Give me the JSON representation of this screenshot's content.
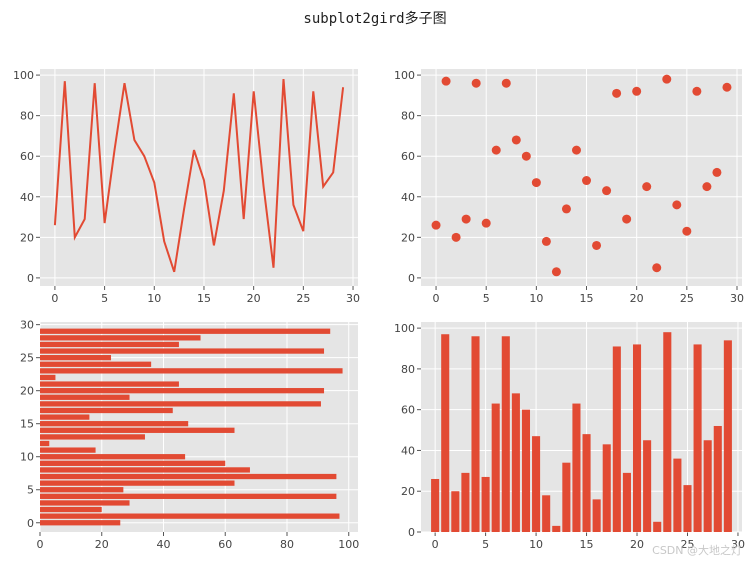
{
  "figure": {
    "title": "subplot2gird多子图",
    "watermark": "CSDN @大地之灯",
    "style": "ggplot",
    "axes_background": "#e5e5e5",
    "grid_color": "#ffffff",
    "series_color": "#e24a33"
  },
  "chart_data": [
    {
      "type": "line",
      "position": "top-left",
      "x": [
        0,
        1,
        2,
        3,
        4,
        5,
        6,
        7,
        8,
        9,
        10,
        11,
        12,
        13,
        14,
        15,
        16,
        17,
        18,
        19,
        20,
        21,
        22,
        23,
        24,
        25,
        26,
        27,
        28,
        29
      ],
      "values": [
        26,
        97,
        20,
        29,
        96,
        27,
        63,
        96,
        68,
        60,
        47,
        18,
        3,
        34,
        63,
        48,
        16,
        43,
        91,
        29,
        92,
        45,
        5,
        98,
        36,
        23,
        92,
        45,
        52,
        94
      ],
      "xlim": [
        -1.5,
        30.5
      ],
      "ylim": [
        -4,
        103
      ],
      "xticks": [
        "0",
        "5",
        "10",
        "15",
        "20",
        "25",
        "30"
      ],
      "yticks": [
        "0",
        "20",
        "40",
        "60",
        "80",
        "100"
      ],
      "grid": true
    },
    {
      "type": "scatter",
      "position": "top-right",
      "x": [
        0,
        1,
        2,
        3,
        4,
        5,
        6,
        7,
        8,
        9,
        10,
        11,
        12,
        13,
        14,
        15,
        16,
        17,
        18,
        19,
        20,
        21,
        22,
        23,
        24,
        25,
        26,
        27,
        28,
        29
      ],
      "values": [
        26,
        97,
        20,
        29,
        96,
        27,
        63,
        96,
        68,
        60,
        47,
        18,
        3,
        34,
        63,
        48,
        16,
        43,
        91,
        29,
        92,
        45,
        5,
        98,
        36,
        23,
        92,
        45,
        52,
        94
      ],
      "xlim": [
        -1.5,
        30.5
      ],
      "ylim": [
        -4,
        103
      ],
      "xticks": [
        "0",
        "5",
        "10",
        "15",
        "20",
        "25",
        "30"
      ],
      "yticks": [
        "0",
        "20",
        "40",
        "60",
        "80",
        "100"
      ],
      "grid": true
    },
    {
      "type": "bar",
      "orientation": "horizontal",
      "position": "bottom-left",
      "categories": [
        0,
        1,
        2,
        3,
        4,
        5,
        6,
        7,
        8,
        9,
        10,
        11,
        12,
        13,
        14,
        15,
        16,
        17,
        18,
        19,
        20,
        21,
        22,
        23,
        24,
        25,
        26,
        27,
        28,
        29
      ],
      "values": [
        26,
        97,
        20,
        29,
        96,
        27,
        63,
        96,
        68,
        60,
        47,
        18,
        3,
        34,
        63,
        48,
        16,
        43,
        91,
        29,
        92,
        45,
        5,
        98,
        36,
        23,
        92,
        45,
        52,
        94
      ],
      "xlim": [
        0,
        103
      ],
      "ylim": [
        -1.4,
        30.4
      ],
      "xticks": [
        "0",
        "20",
        "40",
        "60",
        "80",
        "100"
      ],
      "yticks": [
        "0",
        "5",
        "10",
        "15",
        "20",
        "25",
        "30"
      ],
      "grid": true
    },
    {
      "type": "bar",
      "orientation": "vertical",
      "position": "bottom-right",
      "categories": [
        0,
        1,
        2,
        3,
        4,
        5,
        6,
        7,
        8,
        9,
        10,
        11,
        12,
        13,
        14,
        15,
        16,
        17,
        18,
        19,
        20,
        21,
        22,
        23,
        24,
        25,
        26,
        27,
        28,
        29
      ],
      "values": [
        26,
        97,
        20,
        29,
        96,
        27,
        63,
        96,
        68,
        60,
        47,
        18,
        3,
        34,
        63,
        48,
        16,
        43,
        91,
        29,
        92,
        45,
        5,
        98,
        36,
        23,
        92,
        45,
        52,
        94
      ],
      "xlim": [
        -1.4,
        30.4
      ],
      "ylim": [
        0,
        103
      ],
      "xticks": [
        "0",
        "5",
        "10",
        "15",
        "20",
        "25",
        "30"
      ],
      "yticks": [
        "0",
        "20",
        "40",
        "60",
        "80",
        "100"
      ],
      "grid": true
    }
  ]
}
